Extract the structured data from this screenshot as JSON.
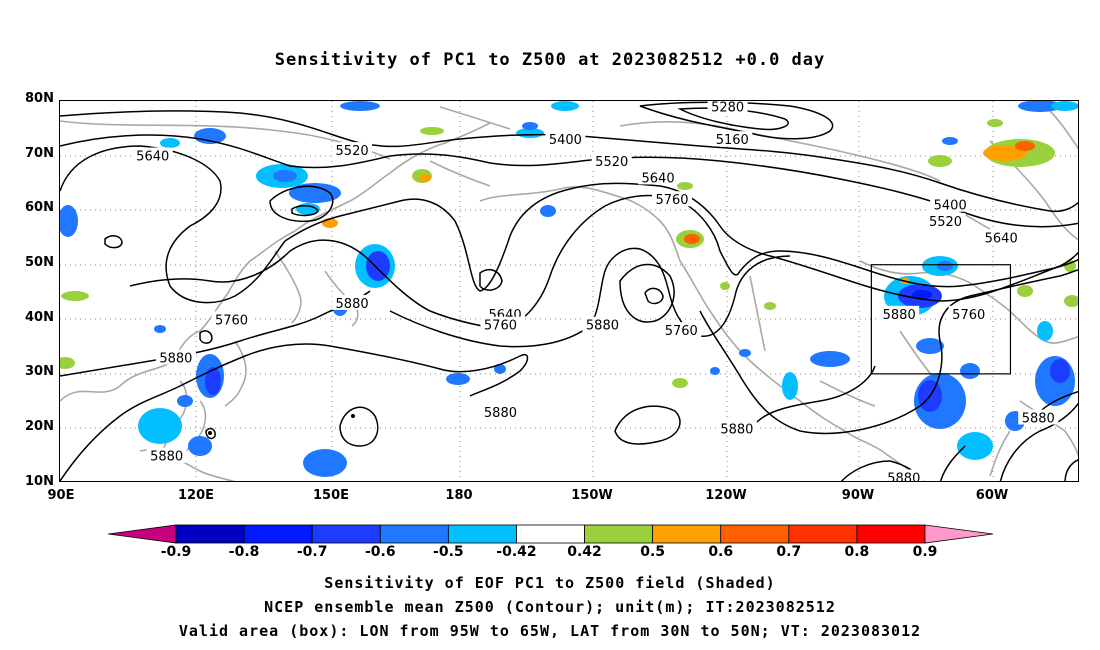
{
  "title": "Sensitivity of PC1 to Z500 at 2023082512 +0.0 day",
  "lat_ticks": [
    "80N",
    "70N",
    "60N",
    "50N",
    "40N",
    "30N",
    "20N",
    "10N"
  ],
  "lon_ticks": [
    "90E",
    "120E",
    "150E",
    "180",
    "150W",
    "120W",
    "90W",
    "60W"
  ],
  "contour_labels": [
    {
      "text": "5640",
      "lon": 110,
      "lat": 70
    },
    {
      "text": "5520",
      "lon": 153,
      "lat": 71
    },
    {
      "text": "5400",
      "lon": -161,
      "lat": 73
    },
    {
      "text": "5280",
      "lon": -126,
      "lat": 79
    },
    {
      "text": "5160",
      "lon": -125,
      "lat": 73
    },
    {
      "text": "5520",
      "lon": -151,
      "lat": 69
    },
    {
      "text": "5640",
      "lon": -141,
      "lat": 66
    },
    {
      "text": "5760",
      "lon": -138,
      "lat": 62
    },
    {
      "text": "5400",
      "lon": -78,
      "lat": 61
    },
    {
      "text": "5520",
      "lon": -79,
      "lat": 58
    },
    {
      "text": "5640",
      "lon": -67,
      "lat": 55
    },
    {
      "text": "5880",
      "lon": 153,
      "lat": 43
    },
    {
      "text": "5760",
      "lon": 127,
      "lat": 40
    },
    {
      "text": "5640",
      "lon": -174,
      "lat": 41
    },
    {
      "text": "5760",
      "lon": -175,
      "lat": 39
    },
    {
      "text": "5880",
      "lon": -153,
      "lat": 39
    },
    {
      "text": "5760",
      "lon": -136,
      "lat": 38
    },
    {
      "text": "5880",
      "lon": -89,
      "lat": 41
    },
    {
      "text": "5760",
      "lon": -74,
      "lat": 41
    },
    {
      "text": "5880",
      "lon": 115,
      "lat": 33
    },
    {
      "text": "5880",
      "lon": -175,
      "lat": 23
    },
    {
      "text": "5880",
      "lon": -124,
      "lat": 20
    },
    {
      "text": "5880",
      "lon": -59,
      "lat": 22
    },
    {
      "text": "5880",
      "lon": 113,
      "lat": 15
    },
    {
      "text": "5880",
      "lon": -88,
      "lat": 11
    }
  ],
  "valid_box": {
    "lon_min": -95,
    "lon_max": -65,
    "lat_min": 30,
    "lat_max": 50
  },
  "colorbar": {
    "labels": [
      "-0.9",
      "-0.8",
      "-0.7",
      "-0.6",
      "-0.5",
      "-0.42",
      "0.42",
      "0.5",
      "0.6",
      "0.7",
      "0.8",
      "0.9"
    ],
    "colors": [
      "#c8007d",
      "#0000c0",
      "#0019ff",
      "#1e3cff",
      "#1f78ff",
      "#03bfff",
      "#ffffff",
      "#9ad03c",
      "#ffa000",
      "#ff6000",
      "#ff3200",
      "#ff0000",
      "#ff99cc"
    ]
  },
  "captions": [
    "Sensitivity of EOF PC1 to Z500 field (Shaded)",
    "NCEP ensemble mean Z500 (Contour); unit(m); IT:2023082512",
    "Valid area (box): LON from 95W to 65W, LAT from 30N to 50N; VT: 2023083012"
  ]
}
